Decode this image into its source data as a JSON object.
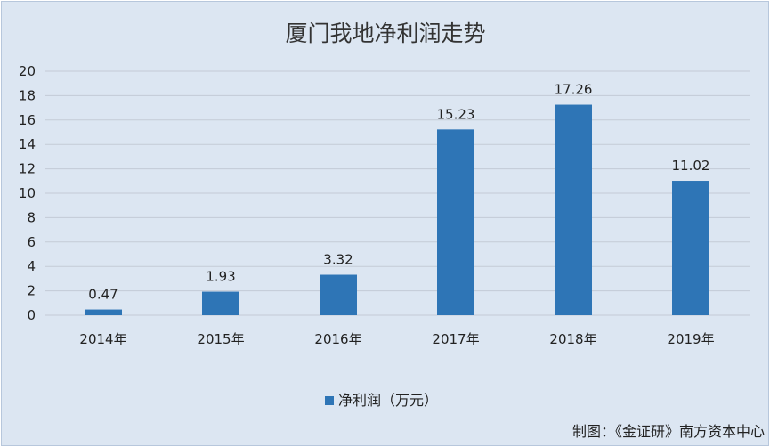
{
  "chart_data": {
    "type": "bar",
    "title": "厦门我地净利润走势",
    "categories": [
      "2014年",
      "2015年",
      "2016年",
      "2017年",
      "2018年",
      "2019年"
    ],
    "series": [
      {
        "name": "净利润（万元）",
        "values": [
          0.47,
          1.93,
          3.32,
          15.23,
          17.26,
          11.02
        ],
        "color": "#2e75b6"
      }
    ],
    "data_labels": [
      "0.47",
      "1.93",
      "3.32",
      "15.23",
      "17.26",
      "11.02"
    ],
    "yticks": [
      "0",
      "2",
      "4",
      "6",
      "8",
      "10",
      "12",
      "14",
      "16",
      "18",
      "20"
    ],
    "ylim": [
      0,
      20
    ],
    "grid": true,
    "legend_position": "bottom",
    "background": "#dce6f2"
  },
  "source_note": "制图：《金证研》南方资本中心"
}
